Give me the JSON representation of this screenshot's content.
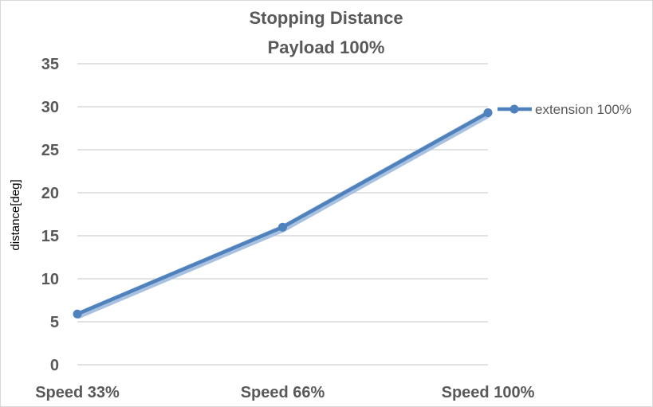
{
  "chart_data": {
    "type": "line",
    "title": [
      "Stopping Distance",
      "Payload 100%"
    ],
    "xlabel": "",
    "ylabel": "distance[deg]",
    "categories": [
      "Speed 33%",
      "Speed 66%",
      "Speed 100%"
    ],
    "ylim": [
      0,
      35
    ],
    "yticks": [
      0,
      5,
      10,
      15,
      20,
      25,
      30,
      35
    ],
    "grid": true,
    "legend_position": "right",
    "series": [
      {
        "name": "extension 100%",
        "values": [
          5.9,
          16.0,
          29.3
        ],
        "color": "#4f81bd",
        "shadow_color": "#a9c1e0"
      }
    ]
  }
}
